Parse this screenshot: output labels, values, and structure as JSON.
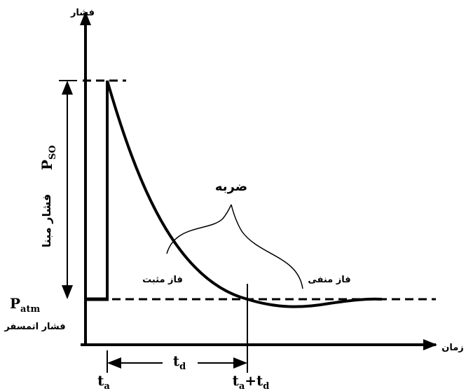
{
  "axes": {
    "y_label": "فشار",
    "x_label": "زمان"
  },
  "labels": {
    "peak_pressure": {
      "symbol": "P",
      "subscript": "SO",
      "text": "فشار مبنا"
    },
    "impulse": "ضربه",
    "positive_phase": "فاز مثبت",
    "negative_phase": "فاز منفی",
    "atmospheric": {
      "symbol": "P",
      "subscript": "atm",
      "text": "فشار اتمسفر"
    },
    "arrival_time": {
      "symbol": "t",
      "subscript": "a"
    },
    "duration": {
      "symbol": "t",
      "subscript": "d"
    },
    "end_time": {
      "symbol1": "t",
      "sub1": "a",
      "plus": "+",
      "symbol2": "t",
      "sub2": "d"
    }
  }
}
